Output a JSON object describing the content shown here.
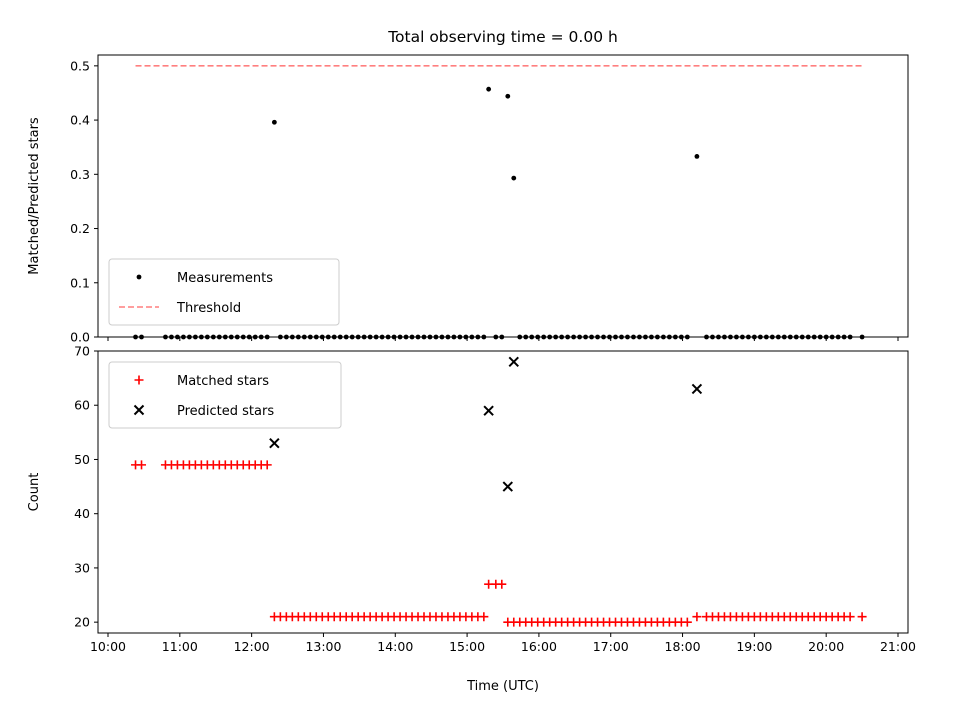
{
  "chart_data": [
    {
      "type": "scatter",
      "title": "Total observing time = 0.00 h",
      "xlabel": "",
      "ylabel": "Matched/Predicted stars",
      "xlim": [
        "10:00",
        "21:00"
      ],
      "ylim": [
        0,
        0.52
      ],
      "yticks": [
        "0.0",
        "0.1",
        "0.2",
        "0.3",
        "0.4",
        "0.5"
      ],
      "legend": {
        "placement": "lower-left",
        "entries": [
          "Measurements",
          "Threshold"
        ]
      },
      "series": [
        {
          "name": "Measurements",
          "marker": "dot",
          "color": "#000000",
          "points": [
            [
              "10:23",
              0
            ],
            [
              "10:28",
              0
            ],
            [
              "10:48",
              0
            ],
            [
              "10:53",
              0
            ],
            [
              "10:58",
              0
            ],
            [
              "11:03",
              0
            ],
            [
              "11:08",
              0
            ],
            [
              "11:13",
              0
            ],
            [
              "11:18",
              0
            ],
            [
              "11:23",
              0
            ],
            [
              "11:28",
              0
            ],
            [
              "11:33",
              0
            ],
            [
              "11:38",
              0
            ],
            [
              "11:43",
              0
            ],
            [
              "11:48",
              0
            ],
            [
              "11:53",
              0
            ],
            [
              "11:58",
              0
            ],
            [
              "12:03",
              0
            ],
            [
              "12:08",
              0
            ],
            [
              "12:13",
              0
            ],
            [
              "12:19",
              0.396
            ],
            [
              "12:24",
              0
            ],
            [
              "12:29",
              0
            ],
            [
              "12:34",
              0
            ],
            [
              "12:39",
              0
            ],
            [
              "12:44",
              0
            ],
            [
              "12:49",
              0
            ],
            [
              "12:54",
              0
            ],
            [
              "12:59",
              0
            ],
            [
              "13:04",
              0
            ],
            [
              "13:09",
              0
            ],
            [
              "13:14",
              0
            ],
            [
              "13:19",
              0
            ],
            [
              "13:24",
              0
            ],
            [
              "13:29",
              0
            ],
            [
              "13:34",
              0
            ],
            [
              "13:39",
              0
            ],
            [
              "13:44",
              0
            ],
            [
              "13:49",
              0
            ],
            [
              "13:54",
              0
            ],
            [
              "13:59",
              0
            ],
            [
              "14:04",
              0
            ],
            [
              "14:09",
              0
            ],
            [
              "14:14",
              0
            ],
            [
              "14:19",
              0
            ],
            [
              "14:24",
              0
            ],
            [
              "14:29",
              0
            ],
            [
              "14:34",
              0
            ],
            [
              "14:39",
              0
            ],
            [
              "14:44",
              0
            ],
            [
              "14:49",
              0
            ],
            [
              "14:54",
              0
            ],
            [
              "14:59",
              0
            ],
            [
              "15:04",
              0
            ],
            [
              "15:09",
              0
            ],
            [
              "15:14",
              0
            ],
            [
              "15:18",
              0.457
            ],
            [
              "15:24",
              0
            ],
            [
              "15:29",
              0
            ],
            [
              "15:34",
              0.444
            ],
            [
              "15:39",
              0.293
            ],
            [
              "15:44",
              0
            ],
            [
              "15:49",
              0
            ],
            [
              "15:54",
              0
            ],
            [
              "15:59",
              0
            ],
            [
              "16:04",
              0
            ],
            [
              "16:09",
              0
            ],
            [
              "16:14",
              0
            ],
            [
              "16:19",
              0
            ],
            [
              "16:24",
              0
            ],
            [
              "16:29",
              0
            ],
            [
              "16:34",
              0
            ],
            [
              "16:39",
              0
            ],
            [
              "16:44",
              0
            ],
            [
              "16:49",
              0
            ],
            [
              "16:54",
              0
            ],
            [
              "16:59",
              0
            ],
            [
              "17:04",
              0
            ],
            [
              "17:09",
              0
            ],
            [
              "17:14",
              0
            ],
            [
              "17:19",
              0
            ],
            [
              "17:24",
              0
            ],
            [
              "17:29",
              0
            ],
            [
              "17:34",
              0
            ],
            [
              "17:39",
              0
            ],
            [
              "17:44",
              0
            ],
            [
              "17:49",
              0
            ],
            [
              "17:54",
              0
            ],
            [
              "17:59",
              0
            ],
            [
              "18:04",
              0
            ],
            [
              "18:12",
              0.333
            ],
            [
              "18:20",
              0
            ],
            [
              "18:25",
              0
            ],
            [
              "18:30",
              0
            ],
            [
              "18:35",
              0
            ],
            [
              "18:40",
              0
            ],
            [
              "18:45",
              0
            ],
            [
              "18:50",
              0
            ],
            [
              "18:55",
              0
            ],
            [
              "19:00",
              0
            ],
            [
              "19:05",
              0
            ],
            [
              "19:10",
              0
            ],
            [
              "19:15",
              0
            ],
            [
              "19:20",
              0
            ],
            [
              "19:25",
              0
            ],
            [
              "19:30",
              0
            ],
            [
              "19:35",
              0
            ],
            [
              "19:40",
              0
            ],
            [
              "19:45",
              0
            ],
            [
              "19:50",
              0
            ],
            [
              "19:55",
              0
            ],
            [
              "20:00",
              0
            ],
            [
              "20:05",
              0
            ],
            [
              "20:10",
              0
            ],
            [
              "20:15",
              0
            ],
            [
              "20:20",
              0
            ],
            [
              "20:30",
              0
            ]
          ]
        },
        {
          "name": "Threshold",
          "type": "line",
          "style": "dashed",
          "color": "#ff7f7f",
          "points": [
            [
              "10:23",
              0.5
            ],
            [
              "20:30",
              0.5
            ]
          ]
        }
      ]
    },
    {
      "type": "scatter",
      "title": "",
      "xlabel": "Time (UTC)",
      "ylabel": "Count",
      "xlim": [
        "10:00",
        "21:00"
      ],
      "xticks": [
        "10:00",
        "11:00",
        "12:00",
        "13:00",
        "14:00",
        "15:00",
        "16:00",
        "17:00",
        "18:00",
        "19:00",
        "20:00",
        "21:00"
      ],
      "ylim": [
        18,
        70
      ],
      "yticks": [
        "20",
        "30",
        "40",
        "50",
        "60",
        "70"
      ],
      "legend": {
        "placement": "upper-left",
        "entries": [
          "Matched stars",
          "Predicted stars"
        ]
      },
      "series": [
        {
          "name": "Matched stars",
          "marker": "plus",
          "color": "#ff0000",
          "points": [
            [
              "10:23",
              49
            ],
            [
              "10:28",
              49
            ],
            [
              "10:48",
              49
            ],
            [
              "10:53",
              49
            ],
            [
              "10:58",
              49
            ],
            [
              "11:03",
              49
            ],
            [
              "11:08",
              49
            ],
            [
              "11:13",
              49
            ],
            [
              "11:18",
              49
            ],
            [
              "11:23",
              49
            ],
            [
              "11:28",
              49
            ],
            [
              "11:33",
              49
            ],
            [
              "11:38",
              49
            ],
            [
              "11:43",
              49
            ],
            [
              "11:48",
              49
            ],
            [
              "11:53",
              49
            ],
            [
              "11:58",
              49
            ],
            [
              "12:03",
              49
            ],
            [
              "12:08",
              49
            ],
            [
              "12:13",
              49
            ],
            [
              "12:19",
              21
            ],
            [
              "12:24",
              21
            ],
            [
              "12:29",
              21
            ],
            [
              "12:34",
              21
            ],
            [
              "12:39",
              21
            ],
            [
              "12:44",
              21
            ],
            [
              "12:49",
              21
            ],
            [
              "12:54",
              21
            ],
            [
              "12:59",
              21
            ],
            [
              "13:04",
              21
            ],
            [
              "13:09",
              21
            ],
            [
              "13:14",
              21
            ],
            [
              "13:19",
              21
            ],
            [
              "13:24",
              21
            ],
            [
              "13:29",
              21
            ],
            [
              "13:34",
              21
            ],
            [
              "13:39",
              21
            ],
            [
              "13:44",
              21
            ],
            [
              "13:49",
              21
            ],
            [
              "13:54",
              21
            ],
            [
              "13:59",
              21
            ],
            [
              "14:04",
              21
            ],
            [
              "14:09",
              21
            ],
            [
              "14:14",
              21
            ],
            [
              "14:19",
              21
            ],
            [
              "14:24",
              21
            ],
            [
              "14:29",
              21
            ],
            [
              "14:34",
              21
            ],
            [
              "14:39",
              21
            ],
            [
              "14:44",
              21
            ],
            [
              "14:49",
              21
            ],
            [
              "14:54",
              21
            ],
            [
              "14:59",
              21
            ],
            [
              "15:04",
              21
            ],
            [
              "15:09",
              21
            ],
            [
              "15:14",
              21
            ],
            [
              "15:18",
              27
            ],
            [
              "15:24",
              27
            ],
            [
              "15:29",
              27
            ],
            [
              "15:34",
              20
            ],
            [
              "15:39",
              20
            ],
            [
              "15:44",
              20
            ],
            [
              "15:49",
              20
            ],
            [
              "15:54",
              20
            ],
            [
              "15:59",
              20
            ],
            [
              "16:04",
              20
            ],
            [
              "16:09",
              20
            ],
            [
              "16:14",
              20
            ],
            [
              "16:19",
              20
            ],
            [
              "16:24",
              20
            ],
            [
              "16:29",
              20
            ],
            [
              "16:34",
              20
            ],
            [
              "16:39",
              20
            ],
            [
              "16:44",
              20
            ],
            [
              "16:49",
              20
            ],
            [
              "16:54",
              20
            ],
            [
              "16:59",
              20
            ],
            [
              "17:04",
              20
            ],
            [
              "17:09",
              20
            ],
            [
              "17:14",
              20
            ],
            [
              "17:19",
              20
            ],
            [
              "17:24",
              20
            ],
            [
              "17:29",
              20
            ],
            [
              "17:34",
              20
            ],
            [
              "17:39",
              20
            ],
            [
              "17:44",
              20
            ],
            [
              "17:49",
              20
            ],
            [
              "17:54",
              20
            ],
            [
              "17:59",
              20
            ],
            [
              "18:04",
              20
            ],
            [
              "18:12",
              21
            ],
            [
              "18:20",
              21
            ],
            [
              "18:25",
              21
            ],
            [
              "18:30",
              21
            ],
            [
              "18:35",
              21
            ],
            [
              "18:40",
              21
            ],
            [
              "18:45",
              21
            ],
            [
              "18:50",
              21
            ],
            [
              "18:55",
              21
            ],
            [
              "19:00",
              21
            ],
            [
              "19:05",
              21
            ],
            [
              "19:10",
              21
            ],
            [
              "19:15",
              21
            ],
            [
              "19:20",
              21
            ],
            [
              "19:25",
              21
            ],
            [
              "19:30",
              21
            ],
            [
              "19:35",
              21
            ],
            [
              "19:40",
              21
            ],
            [
              "19:45",
              21
            ],
            [
              "19:50",
              21
            ],
            [
              "19:55",
              21
            ],
            [
              "20:00",
              21
            ],
            [
              "20:05",
              21
            ],
            [
              "20:10",
              21
            ],
            [
              "20:15",
              21
            ],
            [
              "20:20",
              21
            ],
            [
              "20:30",
              21
            ]
          ]
        },
        {
          "name": "Predicted stars",
          "marker": "x",
          "color": "#000000",
          "points": [
            [
              "12:19",
              53
            ],
            [
              "15:18",
              59
            ],
            [
              "15:34",
              45
            ],
            [
              "15:39",
              68
            ],
            [
              "18:12",
              63
            ]
          ]
        }
      ]
    }
  ]
}
